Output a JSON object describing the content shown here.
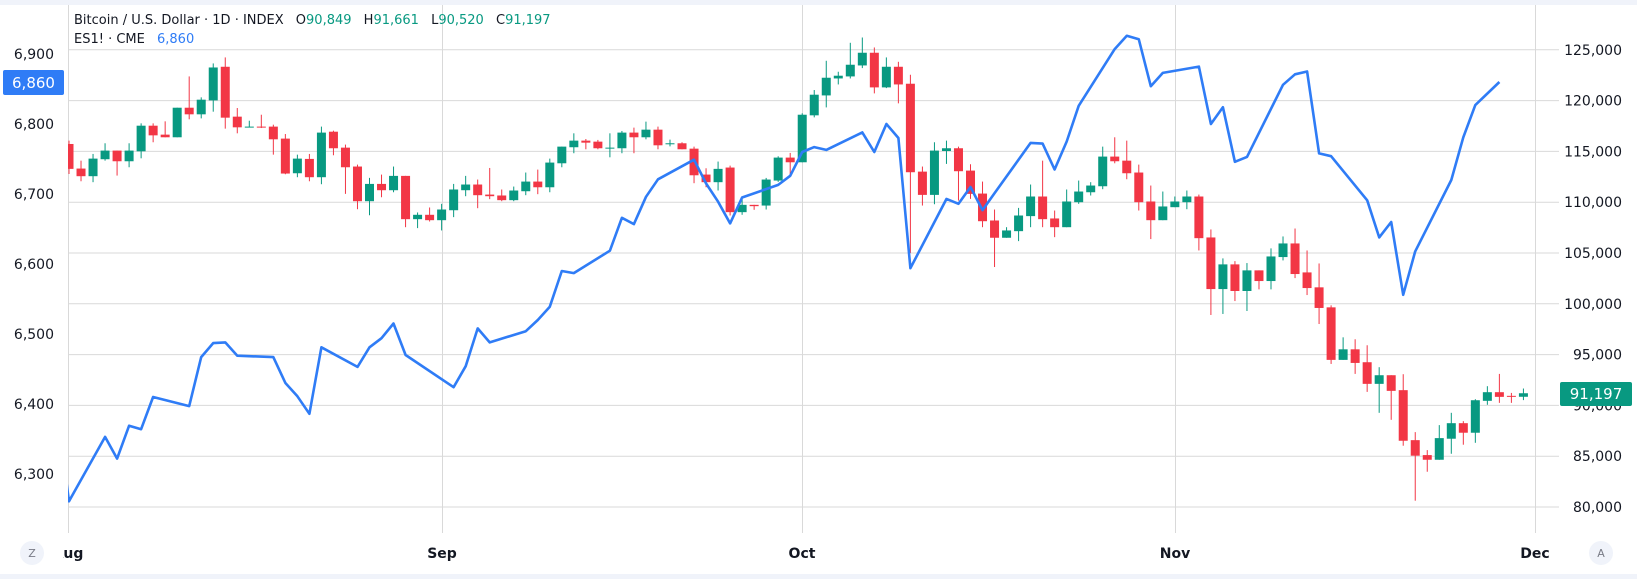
{
  "legend": {
    "main_symbol": "Bitcoin / U.S. Dollar · 1D · INDEX",
    "o_label": "O",
    "o_value": "90,849",
    "h_label": "H",
    "h_value": "91,661",
    "l_label": "L",
    "l_value": "90,520",
    "c_label": "C",
    "c_value": "91,197",
    "compare_symbol": "ES1! · CME",
    "compare_value": "6,860"
  },
  "price_tags": {
    "left": "6,860",
    "right": "91,197"
  },
  "buttons": {
    "left_scale": "Z",
    "right_scale": "A"
  },
  "colors": {
    "up": "#089981",
    "down": "#F23645",
    "compare_line": "#2f7cf6",
    "grid": "#d9d9d9"
  },
  "chart_data": {
    "type": "candlestick",
    "title": "",
    "x_tick_labels": [
      {
        "date": "2025-08-01",
        "label": "Aug"
      },
      {
        "date": "2025-09-01",
        "label": "Sep"
      },
      {
        "date": "2025-10-01",
        "label": "Oct"
      },
      {
        "date": "2025-11-01",
        "label": "Nov"
      },
      {
        "date": "2025-12-01",
        "label": "Dec"
      }
    ],
    "right_axis": {
      "ylim": [
        80000,
        125000
      ],
      "ticks": [
        80000,
        85000,
        90000,
        95000,
        100000,
        105000,
        110000,
        115000,
        120000,
        125000
      ],
      "tick_labels": [
        "80,000",
        "85,000",
        "90,000",
        "95,000",
        "100,000",
        "105,000",
        "110,000",
        "115,000",
        "120,000",
        "125,000"
      ]
    },
    "left_axis": {
      "ticks": [
        6300,
        6400,
        6500,
        6600,
        6700,
        6800,
        6900
      ],
      "tick_labels": [
        "6,300",
        "6,400",
        "6,500",
        "6,600",
        "6,700",
        "6,800",
        "6,900"
      ]
    },
    "grid": true,
    "candles_columns": [
      "date",
      "open",
      "high",
      "low",
      "close"
    ],
    "candles": [
      [
        "2025-08-01",
        115730,
        116060,
        112780,
        113280
      ],
      [
        "2025-08-02",
        113310,
        114090,
        112060,
        112560
      ],
      [
        "2025-08-03",
        112560,
        114750,
        111970,
        114290
      ],
      [
        "2025-08-04",
        114230,
        115800,
        114090,
        115080
      ],
      [
        "2025-08-05",
        115080,
        115080,
        112620,
        114030
      ],
      [
        "2025-08-06",
        114030,
        115800,
        113440,
        115080
      ],
      [
        "2025-08-07",
        115010,
        117760,
        114320,
        117530
      ],
      [
        "2025-08-08",
        117530,
        117760,
        115900,
        116580
      ],
      [
        "2025-08-09",
        116650,
        117960,
        116390,
        116390
      ],
      [
        "2025-08-10",
        116390,
        119300,
        116390,
        119300
      ],
      [
        "2025-08-11",
        119300,
        122380,
        118160,
        118650
      ],
      [
        "2025-08-12",
        118650,
        120320,
        118250,
        120090
      ],
      [
        "2025-08-13",
        120020,
        123660,
        118910,
        123260
      ],
      [
        "2025-08-14",
        123330,
        124250,
        117240,
        118320
      ],
      [
        "2025-08-15",
        118420,
        119270,
        116780,
        117370
      ],
      [
        "2025-08-16",
        117370,
        118020,
        117370,
        117440
      ],
      [
        "2025-08-17",
        117440,
        118610,
        117300,
        117370
      ],
      [
        "2025-08-18",
        117440,
        117630,
        114680,
        116190
      ],
      [
        "2025-08-19",
        116260,
        116710,
        112750,
        112820
      ],
      [
        "2025-08-20",
        112850,
        114680,
        112460,
        114290
      ],
      [
        "2025-08-21",
        114260,
        114750,
        112060,
        112460
      ],
      [
        "2025-08-22",
        112460,
        117440,
        111770,
        116850
      ],
      [
        "2025-08-23",
        116940,
        117040,
        114620,
        115310
      ],
      [
        "2025-08-24",
        115370,
        115670,
        110820,
        113440
      ],
      [
        "2025-08-25",
        113510,
        113700,
        109310,
        110100
      ],
      [
        "2025-08-26",
        110100,
        112390,
        108720,
        111800
      ],
      [
        "2025-08-27",
        111800,
        112720,
        110490,
        111180
      ],
      [
        "2025-08-28",
        111180,
        113510,
        110980,
        112590
      ],
      [
        "2025-08-29",
        112590,
        112590,
        107540,
        108330
      ],
      [
        "2025-08-30",
        108330,
        108990,
        107450,
        108760
      ],
      [
        "2025-08-31",
        108760,
        109480,
        108100,
        108230
      ],
      [
        "2025-09-01",
        108230,
        109840,
        107220,
        109280
      ],
      [
        "2025-09-02",
        109210,
        111800,
        108530,
        111250
      ],
      [
        "2025-09-03",
        111180,
        112590,
        110590,
        111740
      ],
      [
        "2025-09-04",
        111740,
        112230,
        109410,
        110690
      ],
      [
        "2025-09-05",
        110750,
        113370,
        110300,
        110590
      ],
      [
        "2025-09-06",
        110660,
        111250,
        110100,
        110200
      ],
      [
        "2025-09-07",
        110200,
        111540,
        110100,
        111150
      ],
      [
        "2025-09-08",
        111080,
        112920,
        110690,
        112030
      ],
      [
        "2025-09-09",
        112030,
        113210,
        110790,
        111470
      ],
      [
        "2025-09-10",
        111470,
        114290,
        110980,
        113900
      ],
      [
        "2025-09-11",
        113830,
        115470,
        113440,
        115470
      ],
      [
        "2025-09-12",
        115410,
        116780,
        114820,
        116060
      ],
      [
        "2025-09-13",
        116060,
        116220,
        115210,
        115860
      ],
      [
        "2025-09-14",
        115960,
        116130,
        115210,
        115310
      ],
      [
        "2025-09-15",
        115310,
        116780,
        114420,
        115370
      ],
      [
        "2025-09-16",
        115310,
        117010,
        114820,
        116850
      ],
      [
        "2025-09-17",
        116850,
        117340,
        114820,
        116390
      ],
      [
        "2025-09-18",
        116390,
        117930,
        116190,
        117140
      ],
      [
        "2025-09-19",
        117140,
        117440,
        115210,
        115600
      ],
      [
        "2025-09-20",
        115700,
        116160,
        115500,
        115800
      ],
      [
        "2025-09-21",
        115800,
        115900,
        115210,
        115210
      ],
      [
        "2025-09-22",
        115270,
        115470,
        111870,
        112650
      ],
      [
        "2025-09-23",
        112720,
        113340,
        111470,
        111970
      ],
      [
        "2025-09-24",
        111970,
        114000,
        111150,
        113280
      ],
      [
        "2025-09-25",
        113410,
        113600,
        108690,
        109020
      ],
      [
        "2025-09-26",
        109020,
        110430,
        108760,
        109740
      ],
      [
        "2025-09-27",
        109740,
        109740,
        109250,
        109610
      ],
      [
        "2025-09-28",
        109670,
        112390,
        109280,
        112230
      ],
      [
        "2025-09-29",
        112130,
        114520,
        112000,
        114390
      ],
      [
        "2025-09-30",
        114390,
        114850,
        112780,
        113930
      ],
      [
        "2025-10-01",
        113930,
        118750,
        113930,
        118610
      ],
      [
        "2025-10-02",
        118550,
        121040,
        118350,
        120580
      ],
      [
        "2025-10-03",
        120510,
        123920,
        119330,
        122250
      ],
      [
        "2025-10-04",
        122180,
        122840,
        121590,
        122450
      ],
      [
        "2025-10-05",
        122380,
        125690,
        122180,
        123530
      ],
      [
        "2025-10-06",
        123460,
        126210,
        123200,
        124710
      ],
      [
        "2025-10-07",
        124710,
        125230,
        120710,
        121300
      ],
      [
        "2025-10-08",
        121300,
        124250,
        121230,
        123330
      ],
      [
        "2025-10-09",
        123330,
        123820,
        119730,
        121590
      ],
      [
        "2025-10-10",
        121660,
        122540,
        104990,
        112950
      ],
      [
        "2025-10-11",
        113010,
        113510,
        109670,
        110720
      ],
      [
        "2025-10-12",
        110720,
        115900,
        109800,
        115080
      ],
      [
        "2025-10-13",
        115040,
        116060,
        113770,
        115310
      ],
      [
        "2025-10-14",
        115310,
        115470,
        110160,
        113050
      ],
      [
        "2025-10-15",
        113110,
        113730,
        110330,
        110820
      ],
      [
        "2025-10-16",
        110850,
        112030,
        107540,
        108130
      ],
      [
        "2025-10-17",
        108200,
        109280,
        103620,
        106500
      ],
      [
        "2025-10-18",
        106500,
        107540,
        106500,
        107220
      ],
      [
        "2025-10-19",
        107150,
        109440,
        106170,
        108690
      ],
      [
        "2025-10-20",
        108630,
        111740,
        107540,
        110560
      ],
      [
        "2025-10-21",
        110560,
        114090,
        107540,
        108330
      ],
      [
        "2025-10-22",
        108400,
        109180,
        106560,
        107540
      ],
      [
        "2025-10-23",
        107540,
        111250,
        107540,
        110070
      ],
      [
        "2025-10-24",
        110000,
        112130,
        109840,
        111050
      ],
      [
        "2025-10-25",
        110980,
        111970,
        110660,
        111640
      ],
      [
        "2025-10-26",
        111570,
        115470,
        111280,
        114490
      ],
      [
        "2025-10-27",
        114490,
        116390,
        113830,
        114030
      ],
      [
        "2025-10-28",
        114090,
        116060,
        112260,
        112850
      ],
      [
        "2025-10-29",
        112920,
        113700,
        109180,
        110000
      ],
      [
        "2025-10-30",
        110070,
        111640,
        106370,
        108230
      ],
      [
        "2025-10-31",
        108230,
        111050,
        108230,
        109580
      ],
      [
        "2025-11-01",
        109510,
        110560,
        109510,
        110070
      ],
      [
        "2025-11-02",
        110000,
        111150,
        109310,
        110560
      ],
      [
        "2025-11-03",
        110560,
        110750,
        105250,
        106460
      ],
      [
        "2025-11-04",
        106530,
        107320,
        98900,
        101450
      ],
      [
        "2025-11-05",
        101450,
        104470,
        99000,
        103880
      ],
      [
        "2025-11-06",
        103880,
        104200,
        100270,
        101260
      ],
      [
        "2025-11-07",
        101260,
        104010,
        99290,
        103290
      ],
      [
        "2025-11-08",
        103290,
        103290,
        101420,
        102240
      ],
      [
        "2025-11-09",
        102240,
        105450,
        101420,
        104660
      ],
      [
        "2025-11-10",
        104600,
        106630,
        104270,
        105940
      ],
      [
        "2025-11-11",
        105940,
        107410,
        102530,
        102930
      ],
      [
        "2025-11-12",
        103090,
        105250,
        100860,
        101550
      ],
      [
        "2025-11-13",
        101620,
        103970,
        98010,
        99590
      ],
      [
        "2025-11-14",
        99650,
        99850,
        94080,
        94480
      ],
      [
        "2025-11-15",
        94480,
        96700,
        94480,
        95520
      ],
      [
        "2025-11-16",
        95520,
        96510,
        93100,
        94180
      ],
      [
        "2025-11-17",
        94250,
        95920,
        91330,
        92120
      ],
      [
        "2025-11-18",
        92120,
        93760,
        89270,
        92970
      ],
      [
        "2025-11-19",
        92970,
        92970,
        88580,
        91430
      ],
      [
        "2025-11-20",
        91500,
        93070,
        86030,
        86520
      ],
      [
        "2025-11-21",
        86580,
        87370,
        80620,
        85050
      ],
      [
        "2025-11-22",
        85110,
        85600,
        83470,
        84650
      ],
      [
        "2025-11-23",
        84650,
        88060,
        84650,
        86780
      ],
      [
        "2025-11-24",
        86720,
        89270,
        85240,
        88250
      ],
      [
        "2025-11-25",
        88250,
        88450,
        86130,
        87310
      ],
      [
        "2025-11-26",
        87310,
        90610,
        86320,
        90510
      ],
      [
        "2025-11-27",
        90450,
        91890,
        90060,
        91300
      ],
      [
        "2025-11-28",
        91300,
        93100,
        90250,
        90840
      ],
      [
        "2025-11-29",
        90940,
        91230,
        90250,
        90880
      ],
      [
        "2025-11-30",
        90849,
        91661,
        90520,
        91197
      ]
    ],
    "compare_series": {
      "name": "ES1! · CME",
      "axis": "left",
      "type": "line",
      "points": [
        [
          "2025-07-31",
          6390
        ],
        [
          "2025-08-01",
          6261
        ],
        [
          "2025-08-04",
          6353
        ],
        [
          "2025-08-05",
          6322
        ],
        [
          "2025-08-06",
          6369
        ],
        [
          "2025-08-07",
          6364
        ],
        [
          "2025-08-08",
          6410
        ],
        [
          "2025-08-11",
          6397
        ],
        [
          "2025-08-12",
          6467
        ],
        [
          "2025-08-13",
          6487
        ],
        [
          "2025-08-14",
          6488
        ],
        [
          "2025-08-15",
          6469
        ],
        [
          "2025-08-18",
          6467
        ],
        [
          "2025-08-19",
          6430
        ],
        [
          "2025-08-20",
          6411
        ],
        [
          "2025-08-21",
          6386
        ],
        [
          "2025-08-22",
          6481
        ],
        [
          "2025-08-25",
          6453
        ],
        [
          "2025-08-26",
          6481
        ],
        [
          "2025-08-27",
          6494
        ],
        [
          "2025-08-28",
          6515
        ],
        [
          "2025-08-29",
          6470
        ],
        [
          "2025-09-02",
          6424
        ],
        [
          "2025-09-03",
          6454
        ],
        [
          "2025-09-04",
          6508
        ],
        [
          "2025-09-05",
          6488
        ],
        [
          "2025-09-08",
          6504
        ],
        [
          "2025-09-09",
          6520
        ],
        [
          "2025-09-10",
          6539
        ],
        [
          "2025-09-11",
          6590
        ],
        [
          "2025-09-12",
          6587
        ],
        [
          "2025-09-15",
          6619
        ],
        [
          "2025-09-16",
          6666
        ],
        [
          "2025-09-17",
          6657
        ],
        [
          "2025-09-18",
          6696
        ],
        [
          "2025-09-19",
          6721
        ],
        [
          "2025-09-22",
          6749
        ],
        [
          "2025-09-23",
          6715
        ],
        [
          "2025-09-24",
          6689
        ],
        [
          "2025-09-25",
          6658
        ],
        [
          "2025-09-26",
          6695
        ],
        [
          "2025-09-29",
          6713
        ],
        [
          "2025-09-30",
          6726
        ],
        [
          "2025-10-01",
          6760
        ],
        [
          "2025-10-02",
          6767
        ],
        [
          "2025-10-03",
          6763
        ],
        [
          "2025-10-06",
          6788
        ],
        [
          "2025-10-07",
          6760
        ],
        [
          "2025-10-08",
          6800
        ],
        [
          "2025-10-09",
          6780
        ],
        [
          "2025-10-10",
          6594
        ],
        [
          "2025-10-13",
          6693
        ],
        [
          "2025-10-14",
          6686
        ],
        [
          "2025-10-15",
          6710
        ],
        [
          "2025-10-16",
          6677
        ],
        [
          "2025-10-17",
          6701
        ],
        [
          "2025-10-20",
          6773
        ],
        [
          "2025-10-21",
          6772
        ],
        [
          "2025-10-22",
          6735
        ],
        [
          "2025-10-23",
          6775
        ],
        [
          "2025-10-24",
          6826
        ],
        [
          "2025-10-27",
          6907
        ],
        [
          "2025-10-28",
          6926
        ],
        [
          "2025-10-29",
          6921
        ],
        [
          "2025-10-30",
          6854
        ],
        [
          "2025-10-31",
          6873
        ],
        [
          "2025-11-03",
          6882
        ],
        [
          "2025-11-04",
          6800
        ],
        [
          "2025-11-05",
          6824
        ],
        [
          "2025-11-06",
          6746
        ],
        [
          "2025-11-07",
          6753
        ],
        [
          "2025-11-10",
          6856
        ],
        [
          "2025-11-11",
          6871
        ],
        [
          "2025-11-12",
          6875
        ],
        [
          "2025-11-13",
          6758
        ],
        [
          "2025-11-14",
          6754
        ],
        [
          "2025-11-17",
          6691
        ],
        [
          "2025-11-18",
          6638
        ],
        [
          "2025-11-19",
          6660
        ],
        [
          "2025-11-20",
          6556
        ],
        [
          "2025-11-21",
          6618
        ],
        [
          "2025-11-24",
          6720
        ],
        [
          "2025-11-25",
          6781
        ],
        [
          "2025-11-26",
          6827
        ],
        [
          "2025-11-28",
          6860
        ]
      ]
    }
  }
}
